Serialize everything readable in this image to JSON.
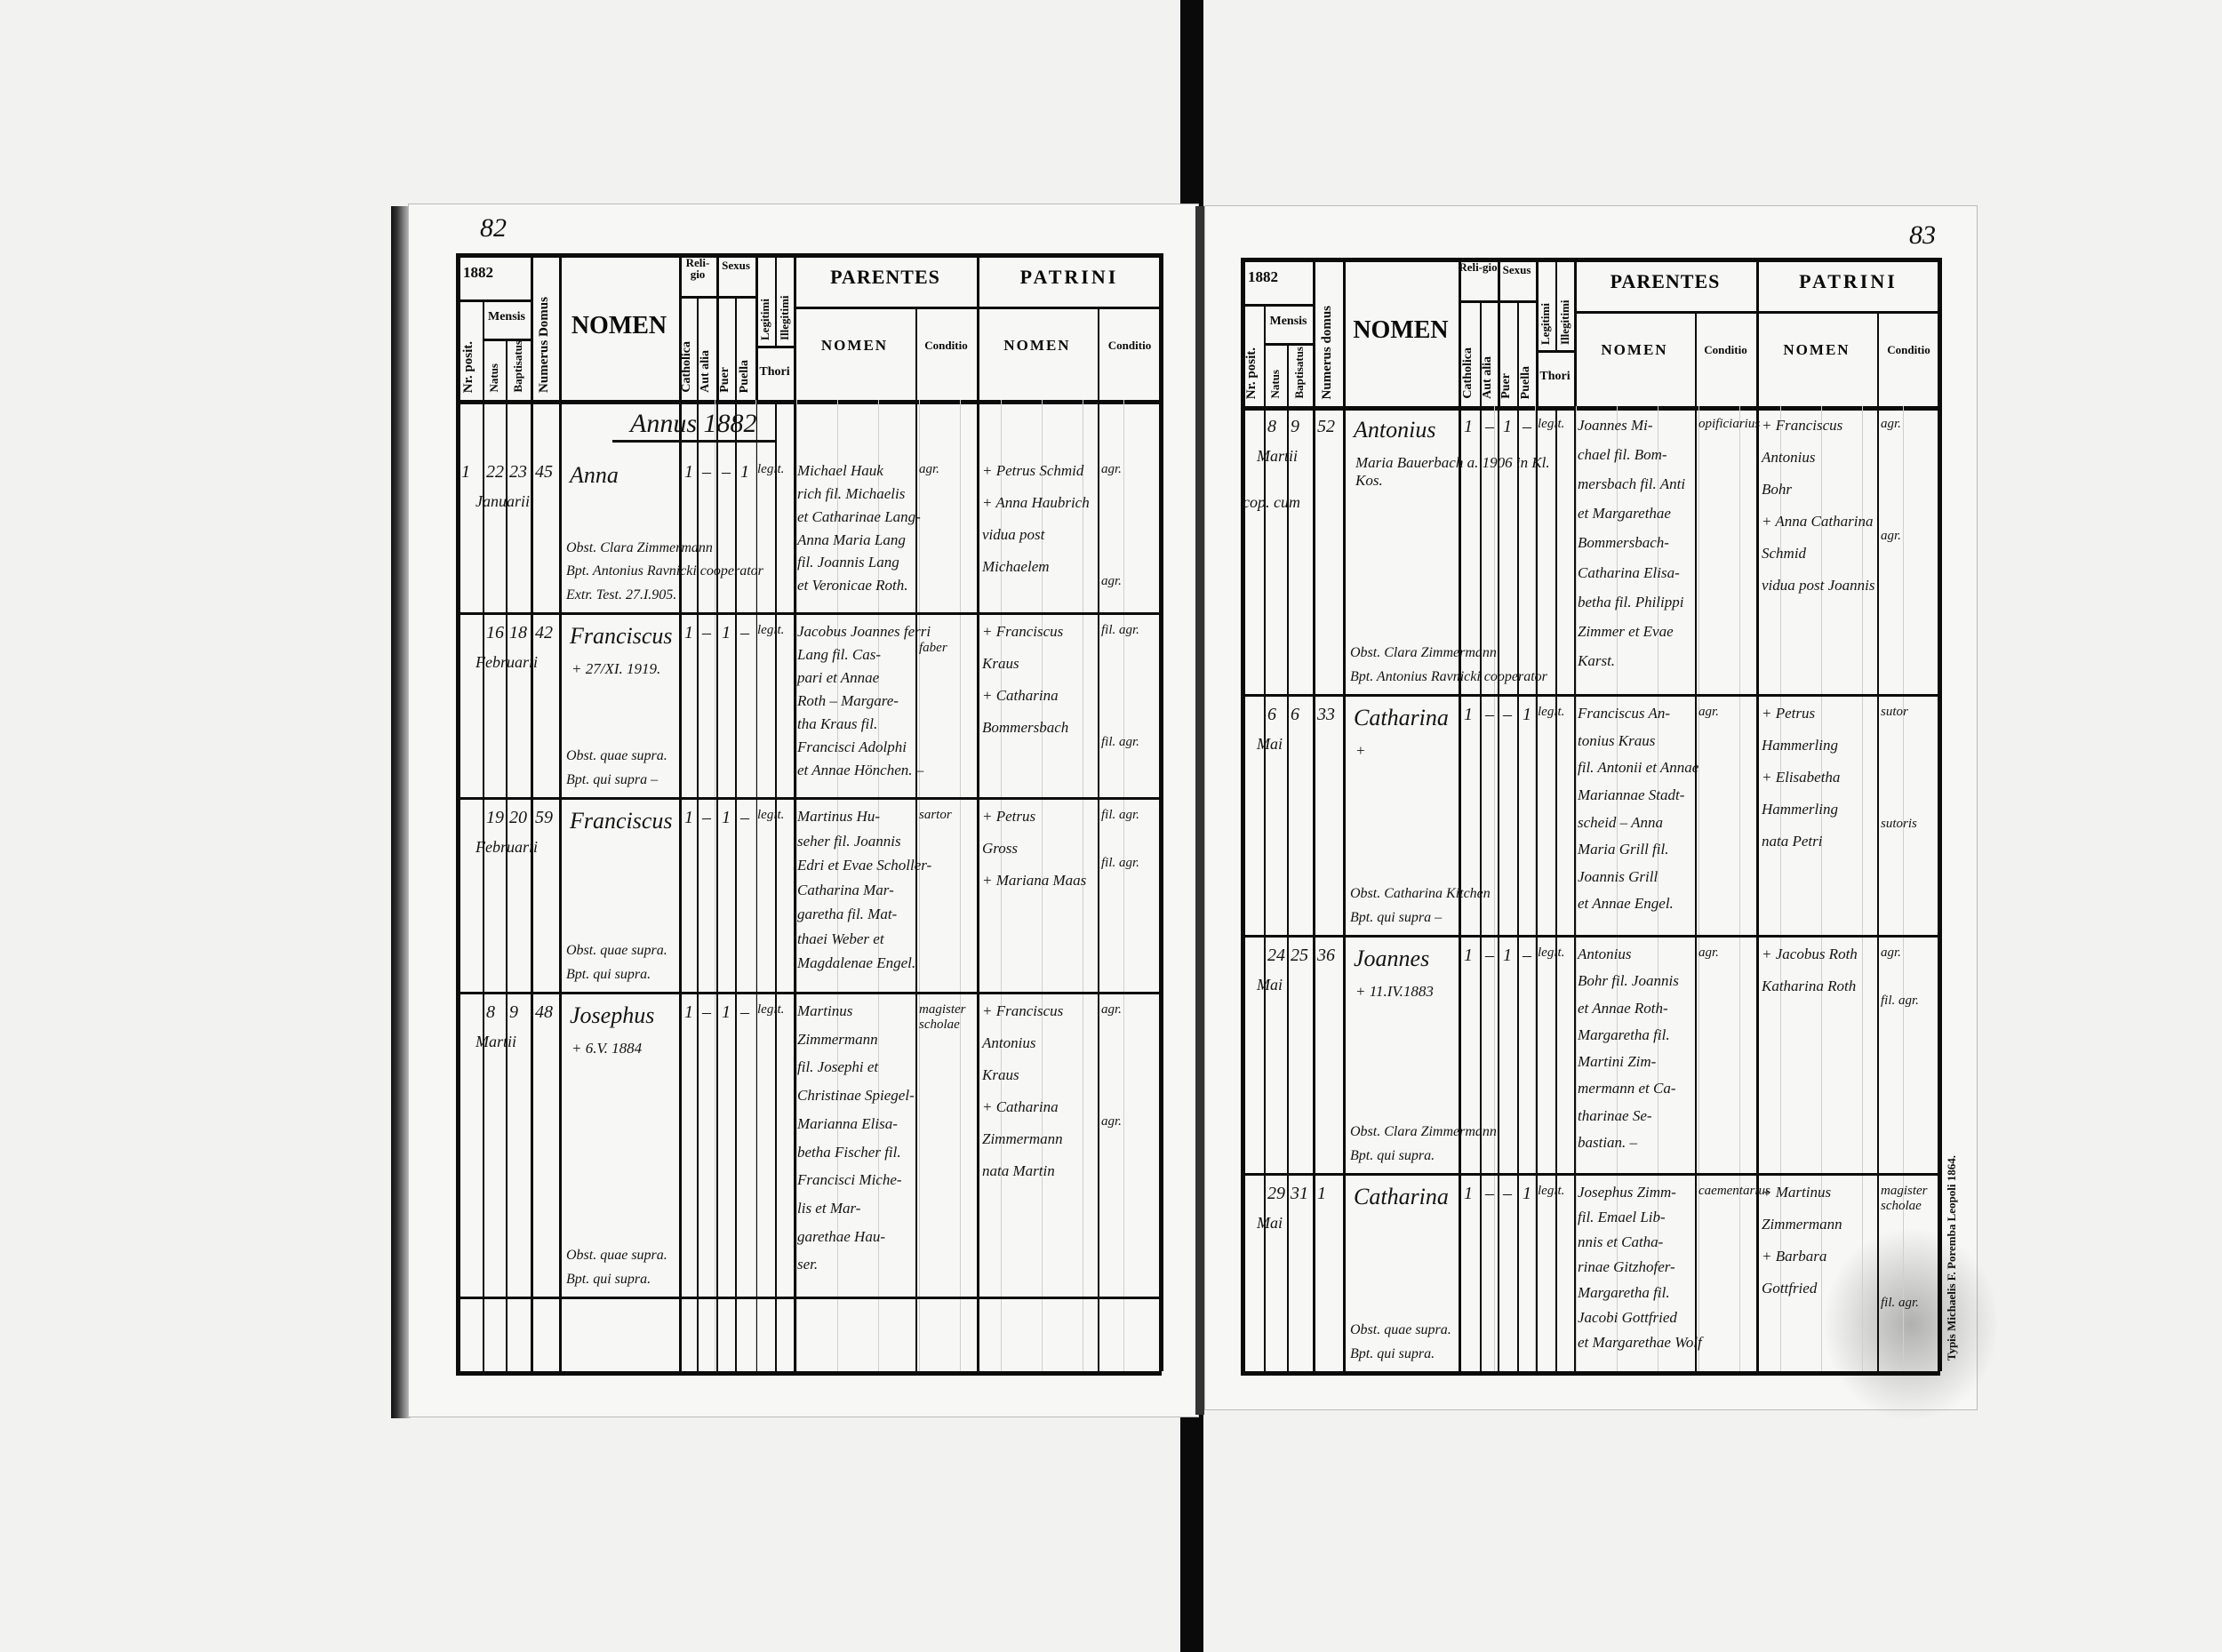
{
  "left_page": {
    "page_number": "82",
    "header": {
      "year": "1882",
      "nr_posit": "Nr. posit.",
      "mensis": "Mensis",
      "natus": "Natus",
      "baptisatus": "Baptisatus",
      "numerus_domus": "Numerus Domus",
      "nomen": "NOMEN",
      "religio": "Reli-gio",
      "catholica": "Catholica",
      "aut_alia": "Aut alia",
      "sexus": "Sexus",
      "puer": "Puer",
      "puella": "Puella",
      "legitimi": "Legitimi",
      "illegitimi": "Illegitimi",
      "thori": "Thori",
      "parentes": "PARENTES",
      "parentes_nomen": "NOMEN",
      "parentes_conditio": "Conditio",
      "patrini": "PATRINI",
      "patrini_nomen": "NOMEN",
      "patrini_conditio": "Conditio"
    },
    "annus_heading": "Annus 1882",
    "entries": [
      {
        "nr": "1",
        "natus": "22",
        "baptisatus": "23",
        "mensis": "Januarii",
        "domus": "45",
        "nomen": "Anna",
        "nomen_note": "",
        "catholica": "1",
        "aut_alia": "–",
        "puer": "–",
        "puella": "1",
        "thori": "legit.",
        "parentes": [
          "Michael Hauk",
          "rich fil. Michaelis",
          "et Catharinae Lang-",
          "Anna Maria Lang",
          "fil. Joannis Lang",
          "et Veronicae Roth."
        ],
        "parentes_conditio": "agr.",
        "patrini": [
          "+ Petrus Schmid",
          "+ Anna Haubrich",
          "vidua post",
          "Michaelem"
        ],
        "patrini_conditio": [
          "agr.",
          "agr."
        ],
        "notes": [
          "Obst. Clara Zimmermann",
          "Bpt. Antonius Ravnicki cooperator",
          "Extr. Test. 27.I.905."
        ]
      },
      {
        "nr": "",
        "natus": "16",
        "baptisatus": "18",
        "mensis": "Februarii",
        "domus": "42",
        "nomen": "Franciscus",
        "nomen_note": "+ 27/XI. 1919.",
        "catholica": "1",
        "aut_alia": "–",
        "puer": "1",
        "puella": "–",
        "thori": "legit.",
        "parentes": [
          "Jacobus Joannes ferri",
          "Lang fil. Cas-",
          "pari et Annae",
          "Roth – Margare-",
          "tha Kraus fil.",
          "Francisci Adolphi",
          "et Annae Hönchen. –"
        ],
        "parentes_conditio": "faber",
        "patrini": [
          "+ Franciscus",
          "Kraus",
          "+ Catharina",
          "Bommersbach"
        ],
        "patrini_conditio": [
          "fil. agr.",
          "fil. agr."
        ],
        "notes": [
          "Obst. quae supra.",
          "Bpt. qui supra –"
        ]
      },
      {
        "nr": "",
        "natus": "19",
        "baptisatus": "20",
        "mensis": "Februarii",
        "domus": "59",
        "nomen": "Franciscus",
        "nomen_note": "",
        "catholica": "1",
        "aut_alia": "–",
        "puer": "1",
        "puella": "–",
        "thori": "legit.",
        "parentes": [
          "Martinus Hu-",
          "seher fil. Joannis",
          "Edri et Evae Scholler-",
          "Catharina Mar-",
          "garetha fil. Mat-",
          "thaei Weber et",
          "Magdalenae Engel."
        ],
        "parentes_conditio": "sartor",
        "patrini": [
          "+ Petrus",
          "Gross",
          "+ Mariana Maas"
        ],
        "patrini_conditio": [
          "fil. agr.",
          "fil. agr."
        ],
        "notes": [
          "Obst. quae supra.",
          "Bpt. qui supra."
        ]
      },
      {
        "nr": "",
        "natus": "8",
        "baptisatus": "9",
        "mensis": "Martii",
        "domus": "48",
        "nomen": "Josephus",
        "nomen_note": "+ 6.V. 1884",
        "catholica": "1",
        "aut_alia": "–",
        "puer": "1",
        "puella": "–",
        "thori": "legit.",
        "parentes": [
          "Martinus",
          "Zimmermann",
          "fil. Josephi et",
          "Christinae Spiegel-",
          "Marianna Elisa-",
          "betha Fischer fil.",
          "Francisci Miche-",
          "lis et Mar-",
          "garethae Hau-",
          "ser."
        ],
        "parentes_conditio": "magister scholae",
        "patrini": [
          "+ Franciscus",
          "Antonius",
          "Kraus",
          "+ Catharina",
          "Zimmermann",
          "nata Martin"
        ],
        "patrini_conditio": [
          "agr.",
          "agr."
        ],
        "notes": [
          "Obst. quae supra.",
          "Bpt. qui supra."
        ]
      }
    ]
  },
  "right_page": {
    "page_number": "83",
    "header": {
      "year": "1882",
      "nr_posit": "Nr. posit.",
      "mensis": "Mensis",
      "natus": "Natus",
      "baptisatus": "Baptisatus",
      "numerus_domus": "Numerus domus",
      "nomen": "NOMEN",
      "religio": "Reli-gio",
      "catholica": "Catholica",
      "aut_alia": "Aut alia",
      "sexus": "Sexus",
      "puer": "Puer",
      "puella": "Puella",
      "legitimi": "Legitimi",
      "illegitimi": "Illegitimi",
      "thori": "Thori",
      "parentes": "PARENTES",
      "parentes_nomen": "NOMEN",
      "parentes_conditio": "Conditio",
      "patrini": "PATRINI",
      "patrini_nomen": "NOMEN",
      "patrini_conditio": "Conditio"
    },
    "entries": [
      {
        "nr": "",
        "natus": "8",
        "baptisatus": "9",
        "mensis": "Martii",
        "domus": "52",
        "nomen": "Antonius",
        "nomen_note": "Maria Bauerbach a. 1906 in Kl. Kos.",
        "margin_note": "cop. cum",
        "catholica": "1",
        "aut_alia": "–",
        "puer": "1",
        "puella": "–",
        "thori": "legit.",
        "parentes": [
          "Joannes Mi-",
          "chael fil. Bom-",
          "mersbach fil. Anti",
          "et Margarethae",
          "Bommersbach-",
          "Catharina Elisa-",
          "betha fil. Philippi",
          "Zimmer et Evae",
          "Karst."
        ],
        "parentes_conditio": "opificiarius",
        "patrini": [
          "+ Franciscus",
          "Antonius",
          "Bohr",
          "+ Anna Catharina",
          "Schmid",
          "vidua post Joannis"
        ],
        "patrini_conditio": [
          "agr.",
          "agr."
        ],
        "notes": [
          "Obst. Clara Zimmermann",
          "Bpt. Antonius Ravnicki cooperator"
        ]
      },
      {
        "nr": "",
        "natus": "6",
        "baptisatus": "6",
        "mensis": "Mai",
        "domus": "33",
        "nomen": "Catharina",
        "nomen_note": "+",
        "catholica": "1",
        "aut_alia": "–",
        "puer": "–",
        "puella": "1",
        "thori": "legit.",
        "parentes": [
          "Franciscus An-",
          "tonius Kraus",
          "fil. Antonii et Annae",
          "Mariannae Stadt-",
          "scheid – Anna",
          "Maria Grill fil.",
          "Joannis Grill",
          "et Annae Engel."
        ],
        "parentes_conditio": "agr.",
        "patrini": [
          "+ Petrus",
          "Hammerling",
          "+ Elisabetha",
          "Hammerling",
          "nata Petri"
        ],
        "patrini_conditio": [
          "sutor",
          "sutoris"
        ],
        "notes": [
          "Obst. Catharina Kitchen",
          "Bpt. qui supra –"
        ]
      },
      {
        "nr": "",
        "natus": "24",
        "baptisatus": "25",
        "mensis": "Mai",
        "domus": "36",
        "nomen": "Joannes",
        "nomen_note": "+ 11.IV.1883",
        "catholica": "1",
        "aut_alia": "–",
        "puer": "1",
        "puella": "–",
        "thori": "legit.",
        "parentes": [
          "Antonius",
          "Bohr fil. Joannis",
          "et Annae Roth-",
          "Margaretha fil.",
          "Martini Zim-",
          "mermann et Ca-",
          "tharinae Se-",
          "bastian. –"
        ],
        "parentes_conditio": "agr.",
        "patrini": [
          "+ Jacobus Roth",
          "Katharina Roth"
        ],
        "patrini_conditio": [
          "agr.",
          "fil. agr."
        ],
        "notes": [
          "Obst. Clara Zimmermann",
          "Bpt. qui supra."
        ]
      },
      {
        "nr": "",
        "natus": "29",
        "baptisatus": "31",
        "mensis": "Mai",
        "domus": "1",
        "nomen": "Catharina",
        "nomen_note": "",
        "catholica": "1",
        "aut_alia": "–",
        "puer": "–",
        "puella": "1",
        "thori": "legit.",
        "parentes": [
          "Josephus Zimm-",
          "fil. Emael Lib-",
          "nnis et Catha-",
          "rinae Gitzhofer-",
          "Margaretha fil.",
          "Jacobi Gottfried",
          "et Margarethae Wolf"
        ],
        "parentes_conditio": "caementarius",
        "patrini": [
          "+ Martinus",
          "Zimmermann",
          "+ Barbara",
          "Gottfried"
        ],
        "patrini_conditio": [
          "magister scholae",
          "fil. agr."
        ],
        "notes": [
          "Obst. quae supra.",
          "Bpt. qui supra."
        ]
      }
    ],
    "imprint": "Typis Michaelis F. Poremba Leopoli 1864."
  },
  "colors": {
    "ink": "#141414",
    "paper": "#f7f7f5",
    "background": "#f2f2f0",
    "rule": "#0c0c0c"
  }
}
